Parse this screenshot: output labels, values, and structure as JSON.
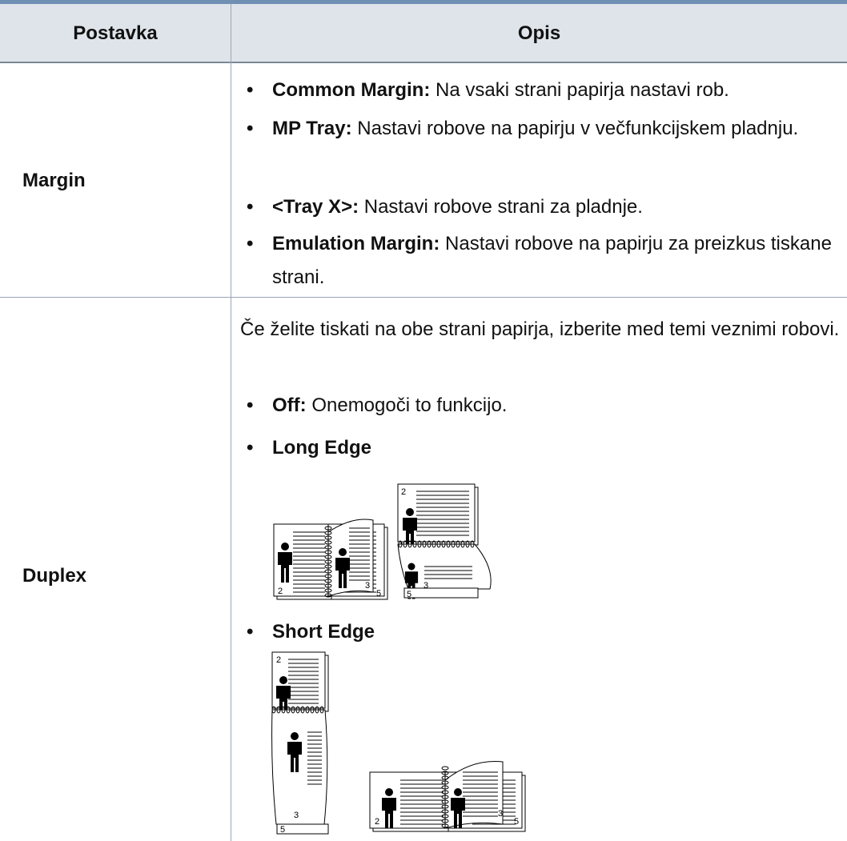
{
  "table": {
    "headers": [
      "Postavka",
      "Opis"
    ],
    "rows": [
      {
        "setting": "Margin",
        "items": [
          {
            "term": "Common Margin:",
            "text": "Na vsaki strani papirja nastavi rob."
          },
          {
            "term": "MP Tray:",
            "text": "Nastavi robove na papirju v večfunkcijskem pladnju."
          },
          {
            "term": "<Tray X>:",
            "text": "Nastavi robove strani za pladnje."
          },
          {
            "term": "Emulation Margin:",
            "text": "Nastavi robove na papirju za preizkus tiskane strani."
          }
        ]
      },
      {
        "setting": "Duplex",
        "intro": "Če želite tiskati na obe strani papirja, izberite med temi veznimi robovi.",
        "items": [
          {
            "term": "Off:",
            "text": "Onemogoči to funkcijo."
          },
          {
            "term": "Long Edge",
            "figure_labels": [
              "2",
              "3",
              "5",
              "2",
              "3",
              "5"
            ]
          },
          {
            "term": "Short Edge",
            "figure_labels": [
              "2",
              "3",
              "5",
              "2",
              "3",
              "5"
            ]
          }
        ]
      }
    ]
  }
}
